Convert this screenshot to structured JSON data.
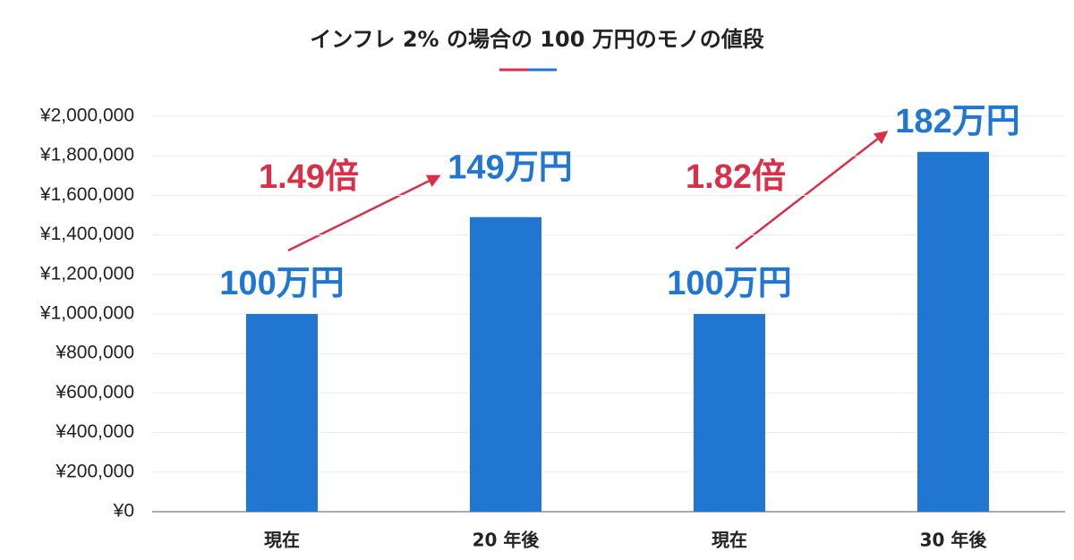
{
  "chart_data": {
    "type": "bar",
    "title": "インフレ 2% の場合の 100 万円のモノの値段",
    "categories": [
      "現在",
      "20 年後",
      "現在",
      "30 年後"
    ],
    "values": [
      1000000,
      1490000,
      1000000,
      1820000
    ],
    "value_labels": [
      "100万円",
      "149万円",
      "100万円",
      "182万円"
    ],
    "color": "#2176d2",
    "annotations": [
      "1.49倍",
      "1.82倍"
    ],
    "ylim": [
      0,
      2000000
    ],
    "yticks": [
      {
        "value": 0,
        "label": "¥0"
      },
      {
        "value": 200000,
        "label": "¥200,000"
      },
      {
        "value": 400000,
        "label": "¥400,000"
      },
      {
        "value": 600000,
        "label": "¥600,000"
      },
      {
        "value": 800000,
        "label": "¥800,000"
      },
      {
        "value": 1000000,
        "label": "¥1,000,000"
      },
      {
        "value": 1200000,
        "label": "¥1,200,000"
      },
      {
        "value": 1400000,
        "label": "¥1,400,000"
      },
      {
        "value": 1600000,
        "label": "¥1,600,000"
      },
      {
        "value": 1800000,
        "label": "¥1,800,000"
      },
      {
        "value": 2000000,
        "label": "¥2,000,000"
      }
    ],
    "grid": true
  }
}
